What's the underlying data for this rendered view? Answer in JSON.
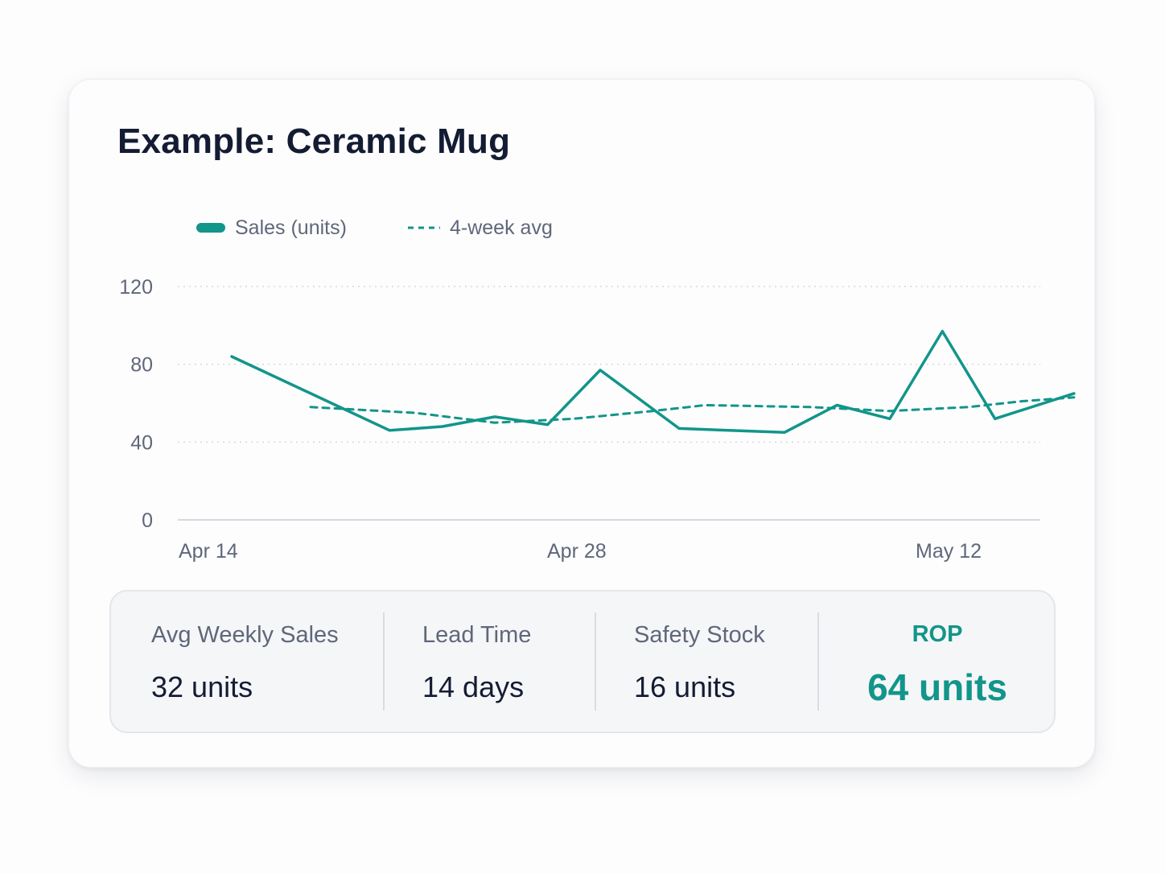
{
  "card": {
    "title": "Example: Ceramic Mug"
  },
  "chart_data": {
    "type": "line",
    "title": "Example: Ceramic Mug",
    "xlabel": "",
    "ylabel": "",
    "ylim": [
      0,
      120
    ],
    "yticks": [
      0,
      40,
      80,
      120
    ],
    "y_tick_labels": [
      "0",
      "40",
      "80",
      "120"
    ],
    "x_tick_labels": [
      "Apr 14",
      "Apr 28",
      "May 12"
    ],
    "x_tick_dates": [
      "Apr 14",
      "Apr 28",
      "May 12"
    ],
    "x": [
      "Apr 14",
      "Apr 16",
      "Apr 18",
      "Apr 20",
      "Apr 22",
      "Apr 24",
      "Apr 26",
      "Apr 28",
      "Apr 30",
      "May 2",
      "May 4",
      "May 6",
      "May 8",
      "May 10",
      "May 12",
      "May 14"
    ],
    "grid": true,
    "legend": "top-left",
    "colors": {
      "series": "#12958a",
      "grid": "#d5d8de",
      "axis": "#d5d8de",
      "tick_text": "#5f6779"
    },
    "series": [
      {
        "name": "Sales (units)",
        "style": "solid",
        "points": [
          [
            "Apr 14",
            84
          ],
          [
            "Apr 20",
            46
          ],
          [
            "Apr 22",
            48
          ],
          [
            "Apr 24",
            53
          ],
          [
            "Apr 26",
            49
          ],
          [
            "Apr 28",
            77
          ],
          [
            "May 1",
            47
          ],
          [
            "May 5",
            45
          ],
          [
            "May 7",
            59
          ],
          [
            "May 9",
            52
          ],
          [
            "May 11",
            97
          ],
          [
            "May 13",
            52
          ],
          [
            "May 16",
            65
          ]
        ]
      },
      {
        "name": "4-week avg",
        "style": "dashed",
        "points": [
          [
            "Apr 17",
            58
          ],
          [
            "Apr 21",
            55
          ],
          [
            "Apr 24",
            50
          ],
          [
            "Apr 27",
            52
          ],
          [
            "Apr 30",
            56
          ],
          [
            "May 2",
            59
          ],
          [
            "May 6",
            58
          ],
          [
            "May 9",
            56
          ],
          [
            "May 12",
            58
          ],
          [
            "May 14",
            61
          ],
          [
            "May 16",
            63
          ]
        ]
      }
    ]
  },
  "stats": [
    {
      "label": "Avg Weekly Sales",
      "value": "32 units"
    },
    {
      "label": "Lead Time",
      "value": "14 days"
    },
    {
      "label": "Safety Stock",
      "value": "16 units"
    },
    {
      "label": "ROP",
      "value": "64 units"
    }
  ]
}
